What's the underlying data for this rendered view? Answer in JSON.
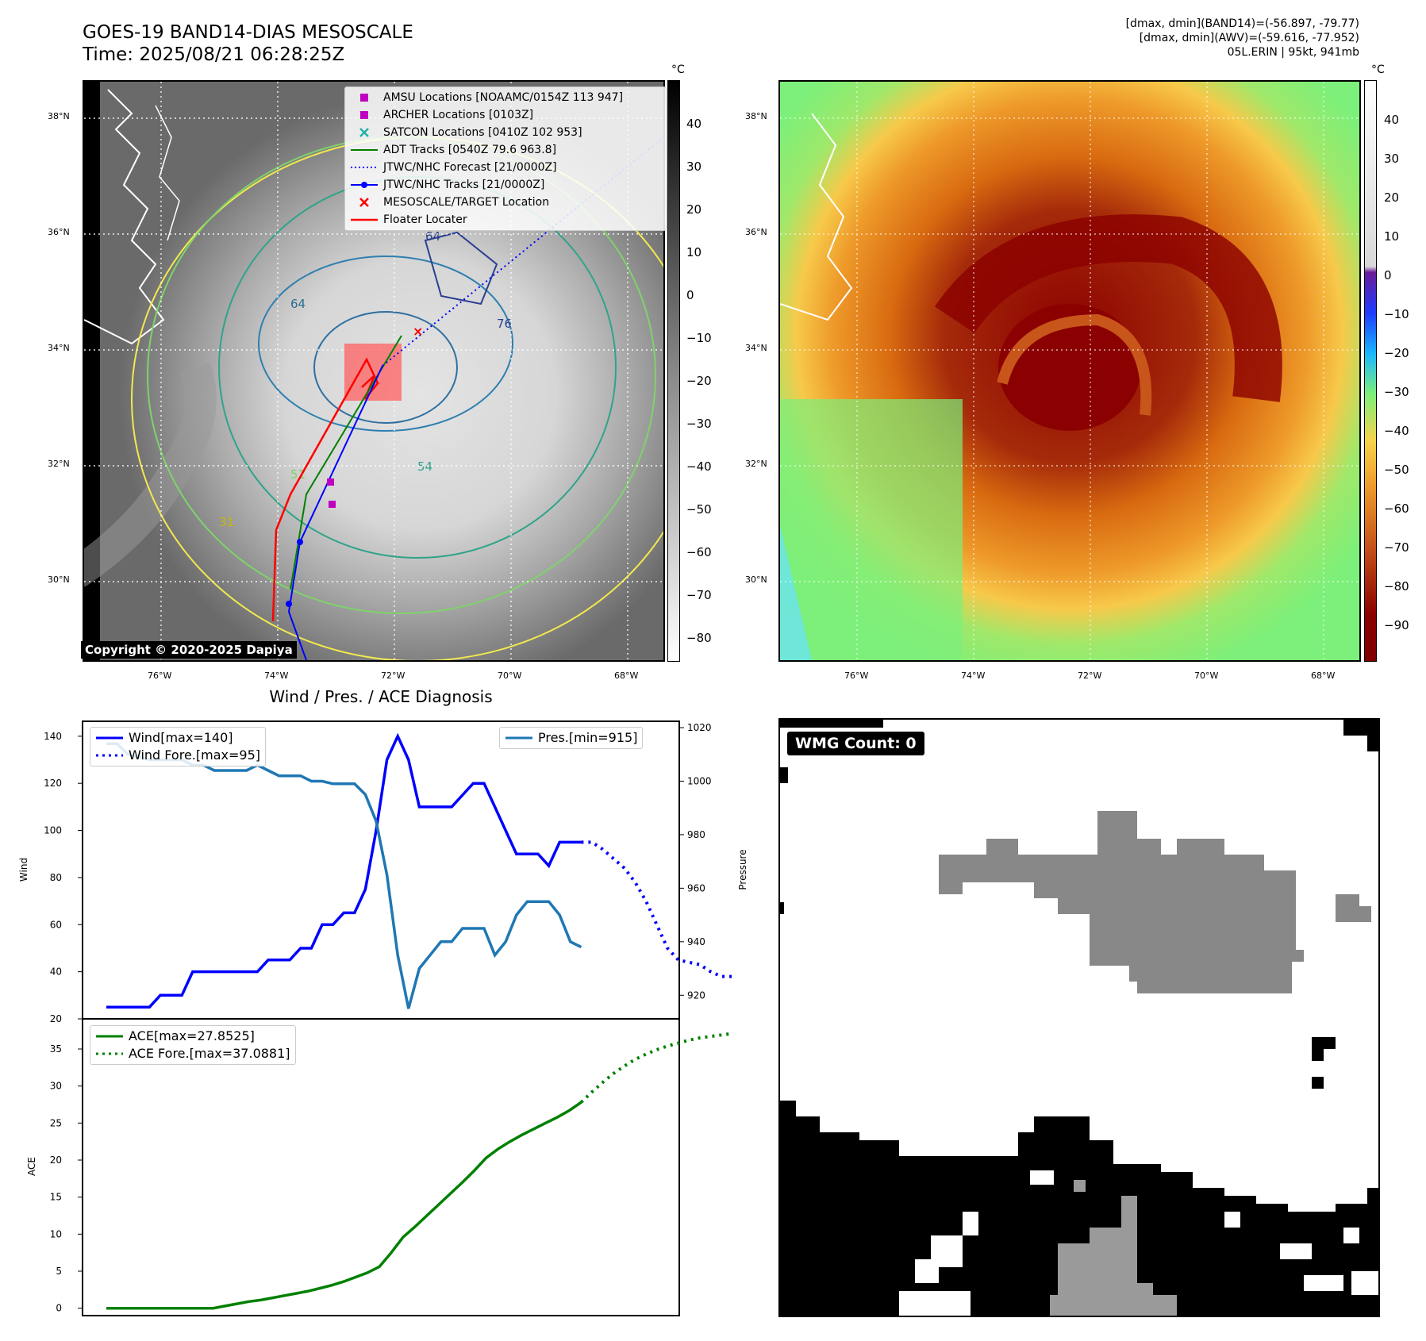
{
  "header": {
    "title_line1": "GOES-19 BAND14-DIAS MESOSCALE",
    "title_line2": "Time: 2025/08/21 06:28:25Z",
    "right_line1": "[dmax, dmin](BAND14)=(-56.897, -79.77)",
    "right_line2": "[dmax, dmin](AWV)=(-59.616, -77.952)",
    "right_line3": "05L.ERIN | 95kt, 941mb"
  },
  "map": {
    "lat_labels": [
      "38°N",
      "36°N",
      "34°N",
      "32°N",
      "30°N"
    ],
    "lon_labels": [
      "76°W",
      "74°W",
      "72°W",
      "70°W",
      "68°W"
    ],
    "copyright": "Copyright © 2020-2025 Dapiya",
    "contour_labels": [
      "64",
      "76",
      "64",
      "54",
      "51",
      "31"
    ]
  },
  "colorbar_gray": {
    "unit": "°C",
    "ticks": [
      "40",
      "30",
      "20",
      "10",
      "0",
      "−10",
      "−20",
      "−30",
      "−40",
      "−50",
      "−60",
      "−70",
      "−80"
    ]
  },
  "colorbar_color": {
    "unit": "°C",
    "ticks": [
      "40",
      "30",
      "20",
      "10",
      "0",
      "−10",
      "−20",
      "−30",
      "−40",
      "−50",
      "−60",
      "−70",
      "−80",
      "−90"
    ]
  },
  "legend": {
    "items": [
      {
        "label": "AMSU Locations [NOAAMC/0154Z 113 947]",
        "color": "#c000c0",
        "icon": "square-marker"
      },
      {
        "label": "ARCHER Locations [0103Z]",
        "color": "#c000c0",
        "icon": "square-marker"
      },
      {
        "label": "SATCON Locations [0410Z 102 953]",
        "color": "#20b2aa",
        "icon": "x-marker"
      },
      {
        "label": "ADT Tracks [0540Z 79.6 963.8]",
        "color": "#008000",
        "icon": "solid-line"
      },
      {
        "label": "JTWC/NHC Forecast [21/0000Z]",
        "color": "#0000ff",
        "icon": "dotted-line"
      },
      {
        "label": "JTWC/NHC Tracks [21/0000Z]",
        "color": "#0000ff",
        "icon": "line-dot"
      },
      {
        "label": "MESOSCALE/TARGET Location",
        "color": "#ff0000",
        "icon": "x-marker"
      },
      {
        "label": "Floater Locater",
        "color": "#ff0000",
        "icon": "solid-line"
      }
    ]
  },
  "diag": {
    "title": "Wind / Pres. / ACE Diagnosis",
    "wind_ylabel": "Wind",
    "pres_ylabel": "Pressure",
    "ace_ylabel": "ACE",
    "wind_ticks": [
      "140",
      "120",
      "100",
      "80",
      "60",
      "40",
      "20"
    ],
    "pres_ticks": [
      "1020",
      "1000",
      "980",
      "960",
      "940",
      "920"
    ],
    "ace_ticks": [
      "35",
      "30",
      "25",
      "20",
      "15",
      "10",
      "5",
      "0"
    ],
    "legend_wind": "Wind[max=140]",
    "legend_wind_fore": "Wind Fore.[max=95]",
    "legend_pres": "Pres.[min=915]",
    "legend_ace": "ACE[max=27.8525]",
    "legend_ace_fore": "ACE Fore.[max=37.0881]"
  },
  "wmg": {
    "label": "WMG Count: 0"
  },
  "colors": {
    "wind": "#0000ff",
    "pres": "#1f77b4",
    "ace": "#008000",
    "wmg_gray": "#888888"
  },
  "chart_data": [
    {
      "type": "line",
      "title": "Wind / Pres. / ACE Diagnosis",
      "ylabel": "Wind",
      "ylim": [
        20,
        145
      ],
      "series": [
        {
          "name": "Wind[max=140]",
          "values": [
            25,
            25,
            25,
            25,
            25,
            30,
            30,
            30,
            40,
            40,
            40,
            40,
            40,
            40,
            40,
            45,
            45,
            45,
            50,
            50,
            60,
            60,
            65,
            65,
            75,
            100,
            130,
            140,
            130,
            110,
            110,
            110,
            110,
            115,
            120,
            120,
            110,
            100,
            90,
            90,
            90,
            85,
            95,
            95,
            95
          ]
        },
        {
          "name": "Wind Fore.[max=95]",
          "values": [
            95,
            95,
            92,
            88,
            84,
            78,
            70,
            60,
            50,
            45,
            44,
            43,
            40,
            38,
            38
          ]
        }
      ]
    },
    {
      "type": "line",
      "ylabel": "Pressure",
      "ylim": [
        910,
        1020
      ],
      "series": [
        {
          "name": "Pres.[min=915]",
          "values": [
            1014,
            1014,
            1010,
            1009,
            1008,
            1008,
            1008,
            1008,
            1006,
            1006,
            1004,
            1004,
            1004,
            1004,
            1006,
            1004,
            1002,
            1002,
            1002,
            1000,
            1000,
            999,
            999,
            999,
            995,
            985,
            965,
            935,
            915,
            930,
            935,
            940,
            940,
            945,
            945,
            945,
            935,
            940,
            950,
            955,
            955,
            955,
            950,
            940,
            938
          ]
        }
      ]
    },
    {
      "type": "line",
      "ylabel": "ACE",
      "ylim": [
        -1,
        38
      ],
      "series": [
        {
          "name": "ACE[max=27.8525]",
          "values": [
            0,
            0,
            0,
            0,
            0,
            0,
            0,
            0,
            0,
            0,
            0.3,
            0.6,
            0.9,
            1.1,
            1.4,
            1.7,
            2,
            2.3,
            2.7,
            3.1,
            3.6,
            4.2,
            4.8,
            5.6,
            7.5,
            9.6,
            11,
            12.5,
            14,
            15.5,
            17,
            18.6,
            20.3,
            21.5,
            22.5,
            23.4,
            24.2,
            25,
            25.8,
            26.7,
            27.8
          ]
        },
        {
          "name": "ACE Fore.[max=37.0881]",
          "values": [
            27.8,
            29.2,
            30.5,
            31.7,
            32.7,
            33.6,
            34.3,
            34.9,
            35.4,
            35.8,
            36.2,
            36.5,
            36.7,
            36.9,
            37.09
          ]
        }
      ]
    }
  ]
}
